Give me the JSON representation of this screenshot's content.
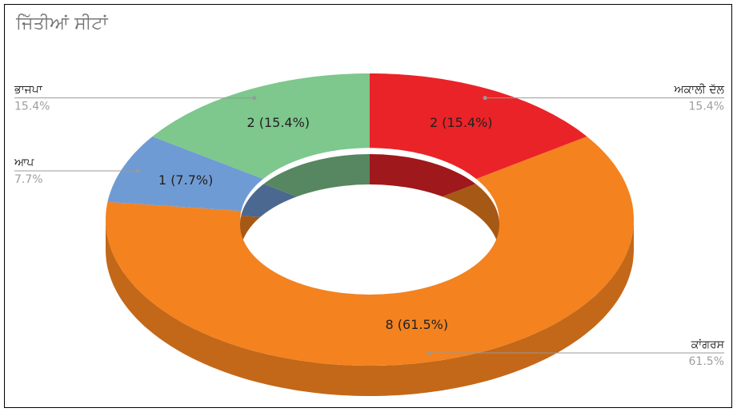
{
  "chart_data": {
    "type": "donut3d",
    "title": "ਜਿੱਤੀਆਂ ਸੀਟਾਂ",
    "categories": [
      "ਅਕਾਲੀ ਦੱਲ",
      "ਕਾਂਗਰਸ",
      "ਆਪ",
      "ਭਾਜਪਾ"
    ],
    "values": [
      2,
      8,
      1,
      2
    ],
    "value_labels": [
      "2 (15.4%)",
      "8 (61.5%)",
      "1 (7.7%)",
      "2 (15.4%)"
    ],
    "percent_labels": [
      "15.4%",
      "61.5%",
      "7.7%",
      "15.4%"
    ],
    "colors": [
      "#ea2328",
      "#f4821f",
      "#6f9bd4",
      "#7ec78d"
    ]
  }
}
